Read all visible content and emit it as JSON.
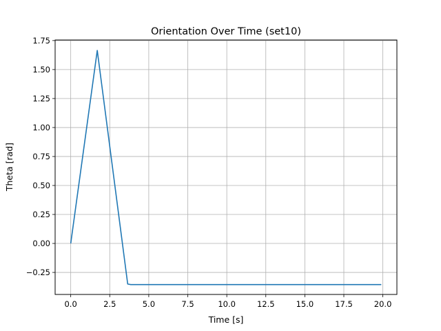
{
  "chart_data": {
    "type": "line",
    "title": "Orientation Over Time (set10)",
    "xlabel": "Time [s]",
    "ylabel": "Theta [rad]",
    "xlim": [
      -1.0,
      20.9
    ],
    "ylim": [
      -0.44,
      1.755
    ],
    "xticks": [
      0,
      2.5,
      5,
      7.5,
      10,
      12.5,
      15,
      17.5,
      20
    ],
    "xtick_labels": [
      "0.0",
      "2.5",
      "5.0",
      "7.5",
      "10.0",
      "12.5",
      "15.0",
      "17.5",
      "20.0"
    ],
    "yticks": [
      -0.25,
      0,
      0.25,
      0.5,
      0.75,
      1.0,
      1.25,
      1.5,
      1.75
    ],
    "ytick_labels": [
      "−0.25",
      "0.00",
      "0.25",
      "0.50",
      "0.75",
      "1.00",
      "1.25",
      "1.50",
      "1.75"
    ],
    "grid": true,
    "series": [
      {
        "color": "#1f77b4",
        "x": [
          0.0,
          1.7,
          3.65,
          3.85,
          19.9
        ],
        "y": [
          0.0,
          1.665,
          -0.35,
          -0.355,
          -0.355
        ]
      }
    ]
  }
}
